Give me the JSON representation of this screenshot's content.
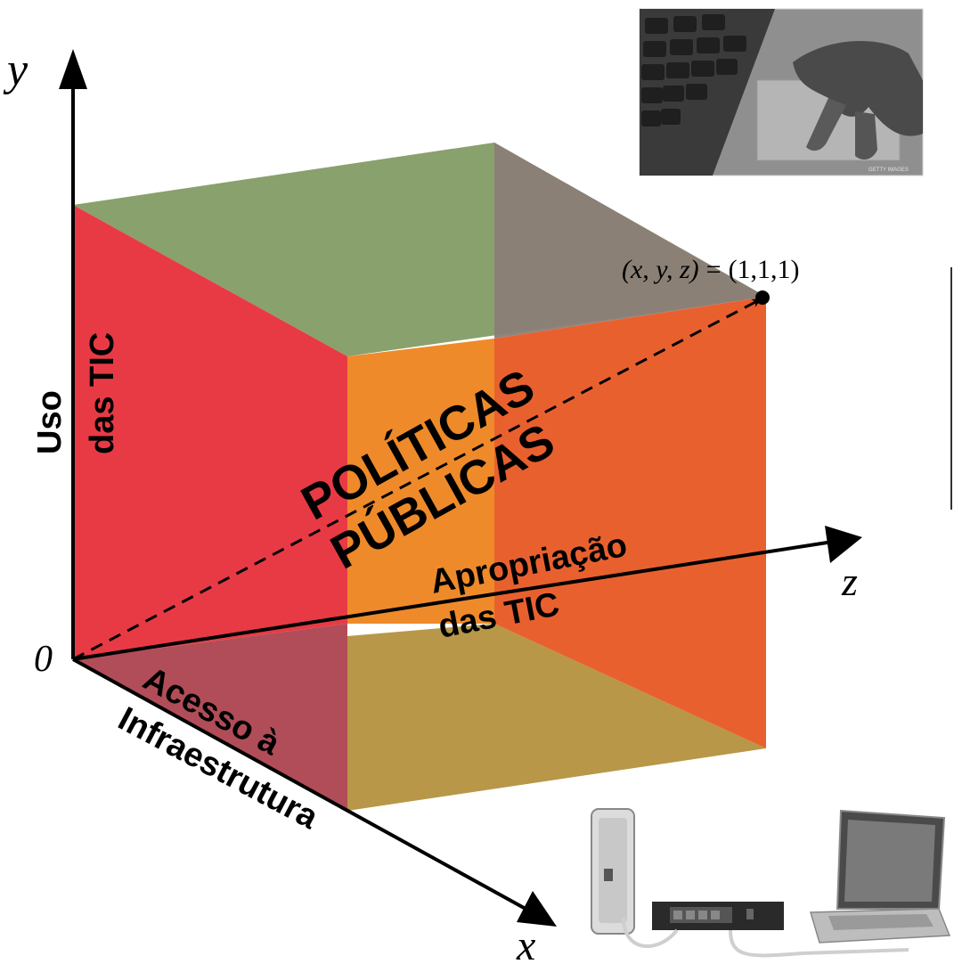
{
  "axes": {
    "y_label": "y",
    "z_label": "z",
    "x_label": "x",
    "origin_label": "0"
  },
  "point_label": {
    "lhs": "(x, y, z)",
    "eq": "=",
    "rhs": "(1,1,1)"
  },
  "labels": {
    "uso_line1": "Uso",
    "uso_line2": "das TIC",
    "politicas_line1": "POLÍTICAS",
    "politicas_line2": "PÚBLICAS",
    "apropriacao_line1": "Apropriação",
    "apropriacao_line2": "das TIC",
    "acesso_line1": "Acesso à",
    "acesso_line2": "Infraestrutura"
  },
  "photo_top": {
    "caption": "GETTY IMAGES"
  },
  "colors": {
    "left_face": "#e83a45",
    "top_face": "#89a16d",
    "top_back": "#8a7e76",
    "front_face": "#ef8a2a",
    "right_face": "#e9602f",
    "bottom_face": "#b89748",
    "bottom_left": "#b14d58"
  }
}
